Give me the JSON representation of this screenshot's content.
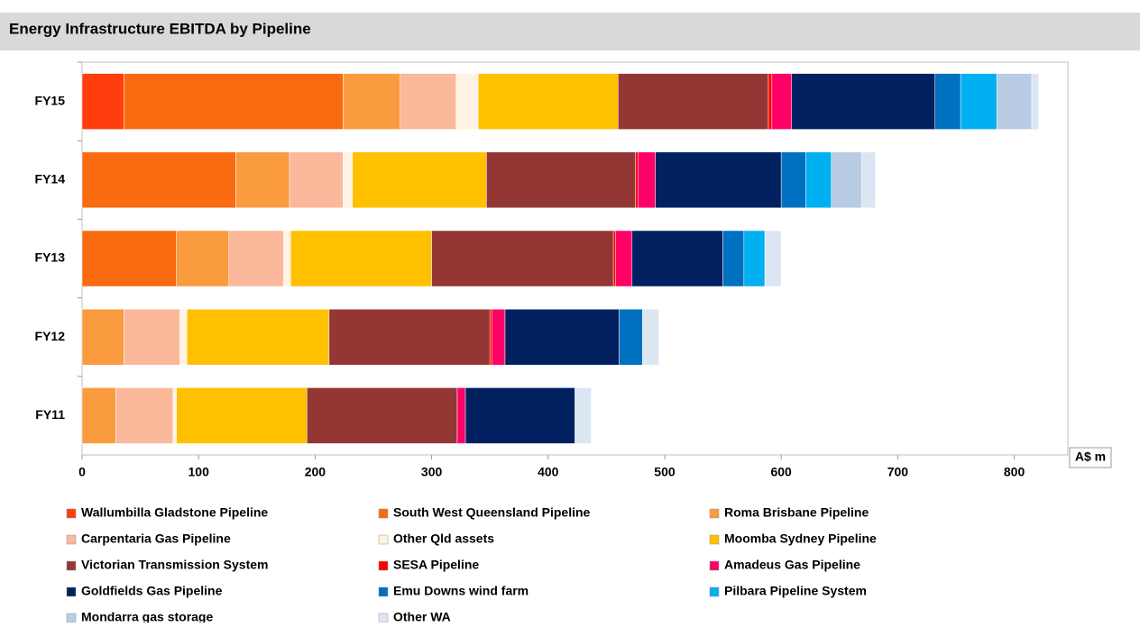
{
  "chart_data": {
    "type": "stacked-bar-horizontal",
    "title": "Energy Infrastructure EBITDA by Pipeline",
    "x_label": "A$ m",
    "categories": [
      "FY15",
      "FY14",
      "FY13",
      "FY12",
      "FY11"
    ],
    "xlim": [
      0,
      846
    ],
    "xticks": [
      0,
      100,
      200,
      300,
      400,
      500,
      600,
      700,
      800
    ],
    "series": [
      {
        "name": "Wallumbilla Gladstone Pipeline",
        "color": "#ff3d0d",
        "values": [
          36,
          null,
          null,
          null,
          null
        ]
      },
      {
        "name": "South West Queensland Pipeline",
        "color": "#fa6a10",
        "values": [
          188,
          132,
          81,
          null,
          null
        ]
      },
      {
        "name": "Roma Brisbane Pipeline",
        "color": "#fb9b3f",
        "values": [
          49,
          46,
          45,
          36,
          29
        ]
      },
      {
        "name": "Carpentaria Gas Pipeline",
        "color": "#fbb89b",
        "values": [
          48,
          46,
          47,
          48,
          49
        ]
      },
      {
        "name": "Other Qld assets",
        "color": "#fff3e4",
        "values": [
          19,
          8,
          6,
          6,
          3
        ]
      },
      {
        "name": "Moomba Sydney Pipeline",
        "color": "#ffc000",
        "values": [
          120,
          115,
          121,
          122,
          112
        ]
      },
      {
        "name": "Victorian Transmission System",
        "color": "#943634",
        "values": [
          129,
          128,
          156,
          138,
          129
        ]
      },
      {
        "name": "SESA Pipeline",
        "color": "#ff0000",
        "values": [
          3,
          2,
          2,
          2,
          0
        ]
      },
      {
        "name": "Amadeus Gas Pipeline",
        "color": "#ff0066",
        "values": [
          17,
          15,
          14,
          11,
          7
        ]
      },
      {
        "name": "Goldfields Gas Pipeline",
        "color": "#002060",
        "values": [
          123,
          108,
          78,
          98,
          94
        ]
      },
      {
        "name": "Emu Downs wind farm",
        "color": "#0070c0",
        "values": [
          22,
          21,
          18,
          20,
          null
        ]
      },
      {
        "name": "Pilbara Pipeline System",
        "color": "#00b0f0",
        "values": [
          31,
          22,
          18,
          null,
          null
        ]
      },
      {
        "name": "Mondarra gas storage",
        "color": "#b8cce4",
        "values": [
          30,
          26,
          null,
          null,
          null
        ]
      },
      {
        "name": "Other WA",
        "color": "#dce6f2",
        "values": [
          6,
          12,
          14,
          14,
          14
        ]
      }
    ]
  }
}
